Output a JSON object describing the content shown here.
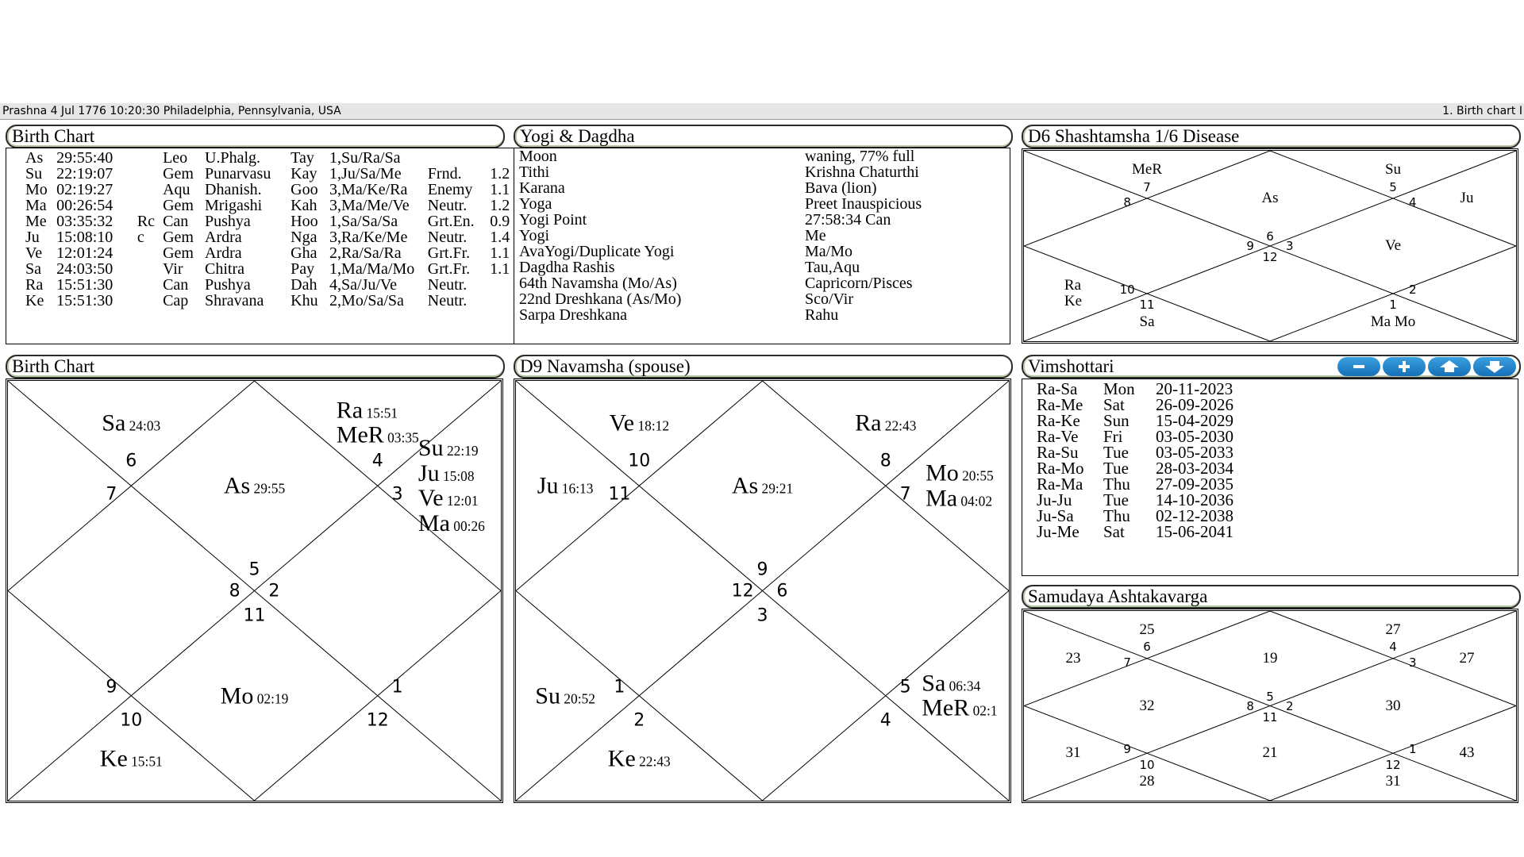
{
  "topbar": {
    "left": "Prashna 4 Jul 1776 10:20:30  Philadelphia, Pennsylvania, USA",
    "right": "1. Birth chart I"
  },
  "birth_table": {
    "title": "Birth Chart",
    "rows": [
      [
        "As",
        "29:55:40",
        "",
        "Leo",
        "U.Phalg.",
        "Tay",
        "1,Su/Ra/Sa",
        "",
        ""
      ],
      [
        "Su",
        "22:19:07",
        "",
        "Gem",
        "Punarvasu",
        "Kay",
        "1,Ju/Sa/Me",
        "Frnd.",
        "1.2"
      ],
      [
        "Mo",
        "02:19:27",
        "",
        "Aqu",
        "Dhanish.",
        "Goo",
        "3,Ma/Ke/Ra",
        "Enemy",
        "1.1"
      ],
      [
        "Ma",
        "00:26:54",
        "",
        "Gem",
        "Mrigashi",
        "Kah",
        "3,Ma/Me/Ve",
        "Neutr.",
        "1.2"
      ],
      [
        "Me",
        "03:35:32",
        "Rc",
        "Can",
        "Pushya",
        "Hoo",
        "1,Sa/Sa/Sa",
        "Grt.En.",
        "0.9"
      ],
      [
        "Ju",
        "15:08:10",
        "c",
        "Gem",
        "Ardra",
        "Nga",
        "3,Ra/Ke/Me",
        "Neutr.",
        "1.4"
      ],
      [
        "Ve",
        "12:01:24",
        "",
        "Gem",
        "Ardra",
        "Gha",
        "2,Ra/Sa/Ra",
        "Grt.Fr.",
        "1.1"
      ],
      [
        "Sa",
        "24:03:50",
        "",
        "Vir",
        "Chitra",
        "Pay",
        "1,Ma/Ma/Mo",
        "Grt.Fr.",
        "1.1"
      ],
      [
        "Ra",
        "15:51:30",
        "",
        "Can",
        "Pushya",
        "Dah",
        "4,Sa/Ju/Ve",
        "Neutr.",
        ""
      ],
      [
        "Ke",
        "15:51:30",
        "",
        "Cap",
        "Shravana",
        "Khu",
        "2,Mo/Sa/Sa",
        "Neutr.",
        ""
      ]
    ]
  },
  "yogi": {
    "title": "Yogi & Dagdha",
    "rows": [
      [
        "Moon",
        "waning, 77% full"
      ],
      [
        "Tithi",
        "Krishna Chaturthi"
      ],
      [
        "Karana",
        "Bava (lion)"
      ],
      [
        "Yoga",
        "Preet Inauspicious"
      ],
      [
        "Yogi Point",
        "27:58:34 Can"
      ],
      [
        "Yogi",
        "Me"
      ],
      [
        "AvaYogi/Duplicate Yogi",
        "Ma/Mo"
      ],
      [
        "Dagdha Rashis",
        "Tau,Aqu"
      ],
      [
        "64th Navamsha (Mo/As)",
        "Capricorn/Pisces"
      ],
      [
        "22nd Dreshkana (As/Mo)",
        "Sco/Vir"
      ],
      [
        "Sarpa Dreshkana",
        "Rahu"
      ]
    ]
  },
  "d6": {
    "title": "D6 Shashtamsha 1/6  Disease",
    "houses": [
      {
        "sign": 6,
        "planets": [
          [
            "As",
            ""
          ]
        ]
      },
      {
        "sign": 7,
        "planets": [
          [
            "MeR",
            ""
          ]
        ]
      },
      {
        "sign": 8,
        "planets": []
      },
      {
        "sign": 9,
        "planets": []
      },
      {
        "sign": 10,
        "planets": [
          [
            "Ra",
            ""
          ],
          [
            "Ke",
            ""
          ]
        ]
      },
      {
        "sign": 11,
        "planets": [
          [
            "Sa",
            ""
          ]
        ]
      },
      {
        "sign": 12,
        "planets": []
      },
      {
        "sign": 1,
        "planets": [
          [
            "Ma Mo",
            ""
          ]
        ]
      },
      {
        "sign": 2,
        "planets": []
      },
      {
        "sign": 3,
        "planets": [
          [
            "Ve",
            ""
          ]
        ]
      },
      {
        "sign": 4,
        "planets": [
          [
            "Ju",
            ""
          ]
        ]
      },
      {
        "sign": 5,
        "planets": [
          [
            "Su",
            ""
          ]
        ]
      }
    ]
  },
  "rasi": {
    "title": "Birth Chart",
    "houses": [
      {
        "sign": 5,
        "planets": [
          [
            "As",
            "29:55"
          ]
        ]
      },
      {
        "sign": 6,
        "planets": [
          [
            "Sa",
            "24:03"
          ]
        ]
      },
      {
        "sign": 7,
        "planets": []
      },
      {
        "sign": 8,
        "planets": []
      },
      {
        "sign": 9,
        "planets": []
      },
      {
        "sign": 10,
        "planets": [
          [
            "Ke",
            "15:51"
          ]
        ]
      },
      {
        "sign": 11,
        "planets": [
          [
            "Mo",
            "02:19"
          ]
        ]
      },
      {
        "sign": 12,
        "planets": []
      },
      {
        "sign": 1,
        "planets": []
      },
      {
        "sign": 2,
        "planets": []
      },
      {
        "sign": 3,
        "planets": [
          [
            "Su",
            "22:19"
          ],
          [
            "Ju",
            "15:08"
          ],
          [
            "Ve",
            "12:01"
          ],
          [
            "Ma",
            "00:26"
          ]
        ]
      },
      {
        "sign": 4,
        "planets": [
          [
            "Ra",
            "15:51"
          ],
          [
            "MeR",
            "03:35"
          ]
        ]
      }
    ]
  },
  "d9": {
    "title": "D9 Navamsha  (spouse)",
    "houses": [
      {
        "sign": 9,
        "planets": [
          [
            "As",
            "29:21"
          ]
        ]
      },
      {
        "sign": 10,
        "planets": [
          [
            "Ve",
            "18:12"
          ]
        ]
      },
      {
        "sign": 11,
        "planets": [
          [
            "Ju",
            "16:13"
          ]
        ]
      },
      {
        "sign": 12,
        "planets": []
      },
      {
        "sign": 1,
        "planets": [
          [
            "Su",
            "20:52"
          ]
        ]
      },
      {
        "sign": 2,
        "planets": [
          [
            "Ke",
            "22:43"
          ]
        ]
      },
      {
        "sign": 3,
        "planets": []
      },
      {
        "sign": 4,
        "planets": []
      },
      {
        "sign": 5,
        "planets": [
          [
            "Sa",
            "06:34"
          ],
          [
            "MeR",
            "02:1"
          ]
        ]
      },
      {
        "sign": 6,
        "planets": []
      },
      {
        "sign": 7,
        "planets": [
          [
            "Mo",
            "20:55"
          ],
          [
            "Ma",
            "04:02"
          ]
        ]
      },
      {
        "sign": 8,
        "planets": [
          [
            "Ra",
            "22:43"
          ]
        ]
      }
    ]
  },
  "vimshottari": {
    "title": "Vimshottari",
    "buttons": [
      "minus-icon",
      "plus-icon",
      "arrow-up-icon",
      "arrow-down-icon"
    ],
    "rows": [
      [
        "Ra-Sa",
        "Mon",
        "20-11-2023"
      ],
      [
        "Ra-Me",
        "Sat",
        "26-09-2026"
      ],
      [
        "Ra-Ke",
        "Sun",
        "15-04-2029"
      ],
      [
        "Ra-Ve",
        "Fri",
        "03-05-2030"
      ],
      [
        "Ra-Su",
        "Tue",
        "03-05-2033"
      ],
      [
        "Ra-Mo",
        "Tue",
        "28-03-2034"
      ],
      [
        "Ra-Ma",
        "Thu",
        "27-09-2035"
      ],
      [
        "Ju-Ju",
        "Tue",
        "14-10-2036"
      ],
      [
        "Ju-Sa",
        "Thu",
        "02-12-2038"
      ],
      [
        "Ju-Me",
        "Sat",
        "15-06-2041"
      ]
    ]
  },
  "ashtaka": {
    "title": "Samudaya Ashtakavarga",
    "houses": [
      {
        "sign": 5,
        "planets": [
          [
            "19",
            ""
          ]
        ]
      },
      {
        "sign": 6,
        "planets": [
          [
            "25",
            ""
          ]
        ]
      },
      {
        "sign": 7,
        "planets": [
          [
            "23",
            ""
          ]
        ]
      },
      {
        "sign": 8,
        "planets": [
          [
            "32",
            ""
          ]
        ]
      },
      {
        "sign": 9,
        "planets": [
          [
            "31",
            ""
          ]
        ]
      },
      {
        "sign": 10,
        "planets": [
          [
            "28",
            ""
          ]
        ]
      },
      {
        "sign": 11,
        "planets": [
          [
            "21",
            ""
          ]
        ]
      },
      {
        "sign": 12,
        "planets": [
          [
            "31",
            ""
          ]
        ]
      },
      {
        "sign": 1,
        "planets": [
          [
            "43",
            ""
          ]
        ]
      },
      {
        "sign": 2,
        "planets": [
          [
            "30",
            ""
          ]
        ]
      },
      {
        "sign": 3,
        "planets": [
          [
            "27",
            ""
          ]
        ]
      },
      {
        "sign": 4,
        "planets": [
          [
            "27",
            ""
          ]
        ]
      }
    ]
  },
  "colors": {
    "button": "#1e82c8",
    "titleBorder": "#2a2a2a"
  }
}
